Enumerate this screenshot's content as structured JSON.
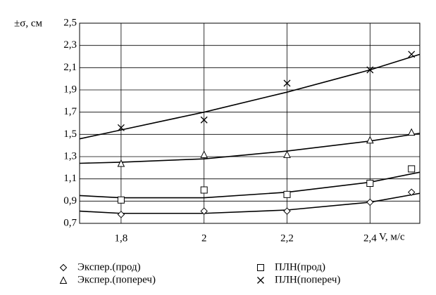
{
  "chart_data": {
    "type": "scatter",
    "y_label": "±σ, см",
    "x_label": "V, м/с",
    "xlim": [
      1.7,
      2.52
    ],
    "ylim": [
      0.7,
      2.5
    ],
    "xticks": [
      {
        "value": 1.8,
        "label": "1,8"
      },
      2,
      {
        "value": 2.2,
        "label": "2,2"
      },
      {
        "value": 2.4,
        "label": "2,4"
      }
    ],
    "yticks": [
      {
        "value": 0.7,
        "label": "0,7"
      },
      {
        "value": 0.9,
        "label": "0,9"
      },
      {
        "value": 1.1,
        "label": "1,1"
      },
      {
        "value": 1.3,
        "label": "1,3"
      },
      {
        "value": 1.5,
        "label": "1,5"
      },
      {
        "value": 1.7,
        "label": "1,7"
      },
      {
        "value": 1.9,
        "label": "1,9"
      },
      {
        "value": 2.1,
        "label": "2,1"
      },
      {
        "value": 2.3,
        "label": "2,3"
      },
      {
        "value": 2.5,
        "label": "2,5"
      }
    ],
    "grid": true,
    "color": "#000000",
    "x": [
      1.8,
      2.0,
      2.2,
      2.4,
      2.5
    ],
    "series": [
      {
        "name": "Экспер.(прод)",
        "marker": "diamond",
        "values": [
          0.78,
          0.81,
          0.81,
          0.89,
          0.98
        ],
        "trend_x": [
          1.7,
          1.8,
          2.0,
          2.2,
          2.4,
          2.52
        ],
        "trend": [
          0.81,
          0.79,
          0.79,
          0.82,
          0.89,
          0.97
        ]
      },
      {
        "name": "ПЛН(прод)",
        "marker": "square",
        "values": [
          0.91,
          1.0,
          0.96,
          1.06,
          1.19
        ],
        "trend_x": [
          1.7,
          1.8,
          2.0,
          2.2,
          2.4,
          2.52
        ],
        "trend": [
          0.95,
          0.93,
          0.93,
          0.98,
          1.07,
          1.16
        ]
      },
      {
        "name": "Экспер.(попереч)",
        "marker": "triangle",
        "values": [
          1.24,
          1.32,
          1.32,
          1.45,
          1.52
        ],
        "trend_x": [
          1.7,
          1.8,
          2.0,
          2.2,
          2.4,
          2.52
        ],
        "trend": [
          1.24,
          1.25,
          1.28,
          1.35,
          1.44,
          1.51
        ]
      },
      {
        "name": "ПЛН(попереч)",
        "marker": "cross",
        "values": [
          1.56,
          1.63,
          1.96,
          2.08,
          2.22
        ],
        "trend_x": [
          1.7,
          1.8,
          2.0,
          2.2,
          2.4,
          2.52
        ],
        "trend": [
          1.46,
          1.54,
          1.7,
          1.88,
          2.08,
          2.22
        ]
      }
    ]
  }
}
